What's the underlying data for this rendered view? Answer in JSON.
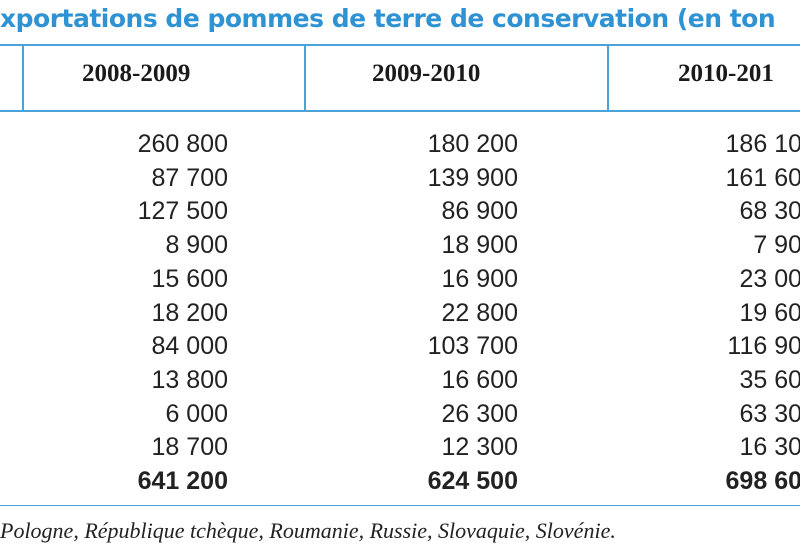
{
  "header": {
    "title": "xportations de pommes de terre de conservation (en ton"
  },
  "table": {
    "columns": [
      "2008-2009",
      "2009-2010",
      "2010-201"
    ],
    "rows": [
      [
        "260 800",
        "180 200",
        "186 10"
      ],
      [
        "87 700",
        "139 900",
        "161 60"
      ],
      [
        "127 500",
        "86 900",
        "68 30"
      ],
      [
        "8 900",
        "18 900",
        "7 90"
      ],
      [
        "15 600",
        "16 900",
        "23 00"
      ],
      [
        "18 200",
        "22 800",
        "19 60"
      ],
      [
        "84 000",
        "103 700",
        "116 90"
      ],
      [
        "13 800",
        "16 600",
        "35 60"
      ],
      [
        "6 000",
        "26 300",
        "63 30"
      ],
      [
        "18 700",
        "12 300",
        "16 30"
      ]
    ],
    "total": [
      "641 200",
      "624 500",
      "698 60"
    ]
  },
  "footer": {
    "note": "Pologne, République tchèque, Roumanie, Russie, Slovaquie, Slovénie."
  }
}
